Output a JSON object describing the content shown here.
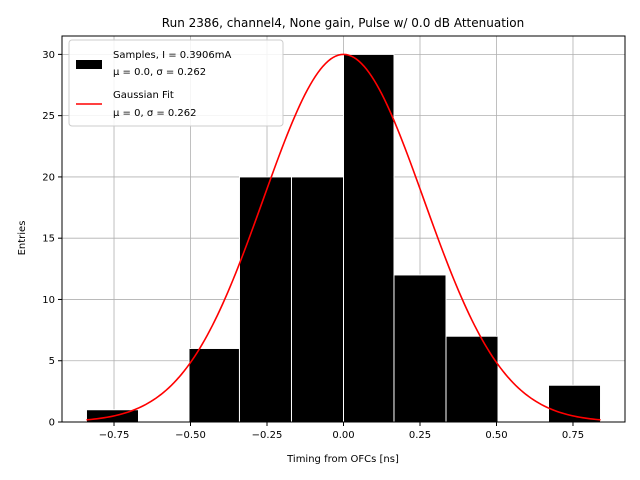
{
  "chart_data": {
    "type": "bar",
    "title": "Run 2386, channel4, None gain, Pulse w/ 0.0 dB Attenuation",
    "xlabel": "Timing from OFCs [ns]",
    "ylabel": "Entries",
    "xlim": [
      -0.92,
      0.92
    ],
    "ylim": [
      0,
      31.5
    ],
    "grid": true,
    "xticks": [
      -0.75,
      -0.5,
      -0.25,
      0.0,
      0.25,
      0.5,
      0.75
    ],
    "xtick_labels": [
      "−0.75",
      "−0.50",
      "−0.25",
      "0.00",
      "0.25",
      "0.50",
      "0.75"
    ],
    "yticks": [
      0,
      5,
      10,
      15,
      20,
      25,
      30
    ],
    "ytick_labels": [
      "0",
      "5",
      "10",
      "15",
      "20",
      "25",
      "30"
    ],
    "histogram": {
      "name": "Samples, I = 0.3906mA",
      "stats": "μ = 0.0, σ = 0.262",
      "color": "#000000",
      "bins": [
        {
          "left": -0.84,
          "right": -0.67,
          "count": 1
        },
        {
          "left": -0.505,
          "right": -0.34,
          "count": 6
        },
        {
          "left": -0.34,
          "right": -0.17,
          "count": 20
        },
        {
          "left": -0.17,
          "right": 0.0,
          "count": 20
        },
        {
          "left": 0.0,
          "right": 0.165,
          "count": 30
        },
        {
          "left": 0.165,
          "right": 0.335,
          "count": 12
        },
        {
          "left": 0.335,
          "right": 0.505,
          "count": 7
        },
        {
          "left": 0.67,
          "right": 0.84,
          "count": 3
        }
      ]
    },
    "fit": {
      "name": "Gaussian Fit",
      "stats": "μ = 0, σ = 0.262",
      "color": "#ff0000",
      "mu": 0.0,
      "sigma": 0.262,
      "amplitude": 30,
      "x_range": [
        -0.84,
        0.84
      ]
    },
    "legend_position": "upper-left"
  }
}
